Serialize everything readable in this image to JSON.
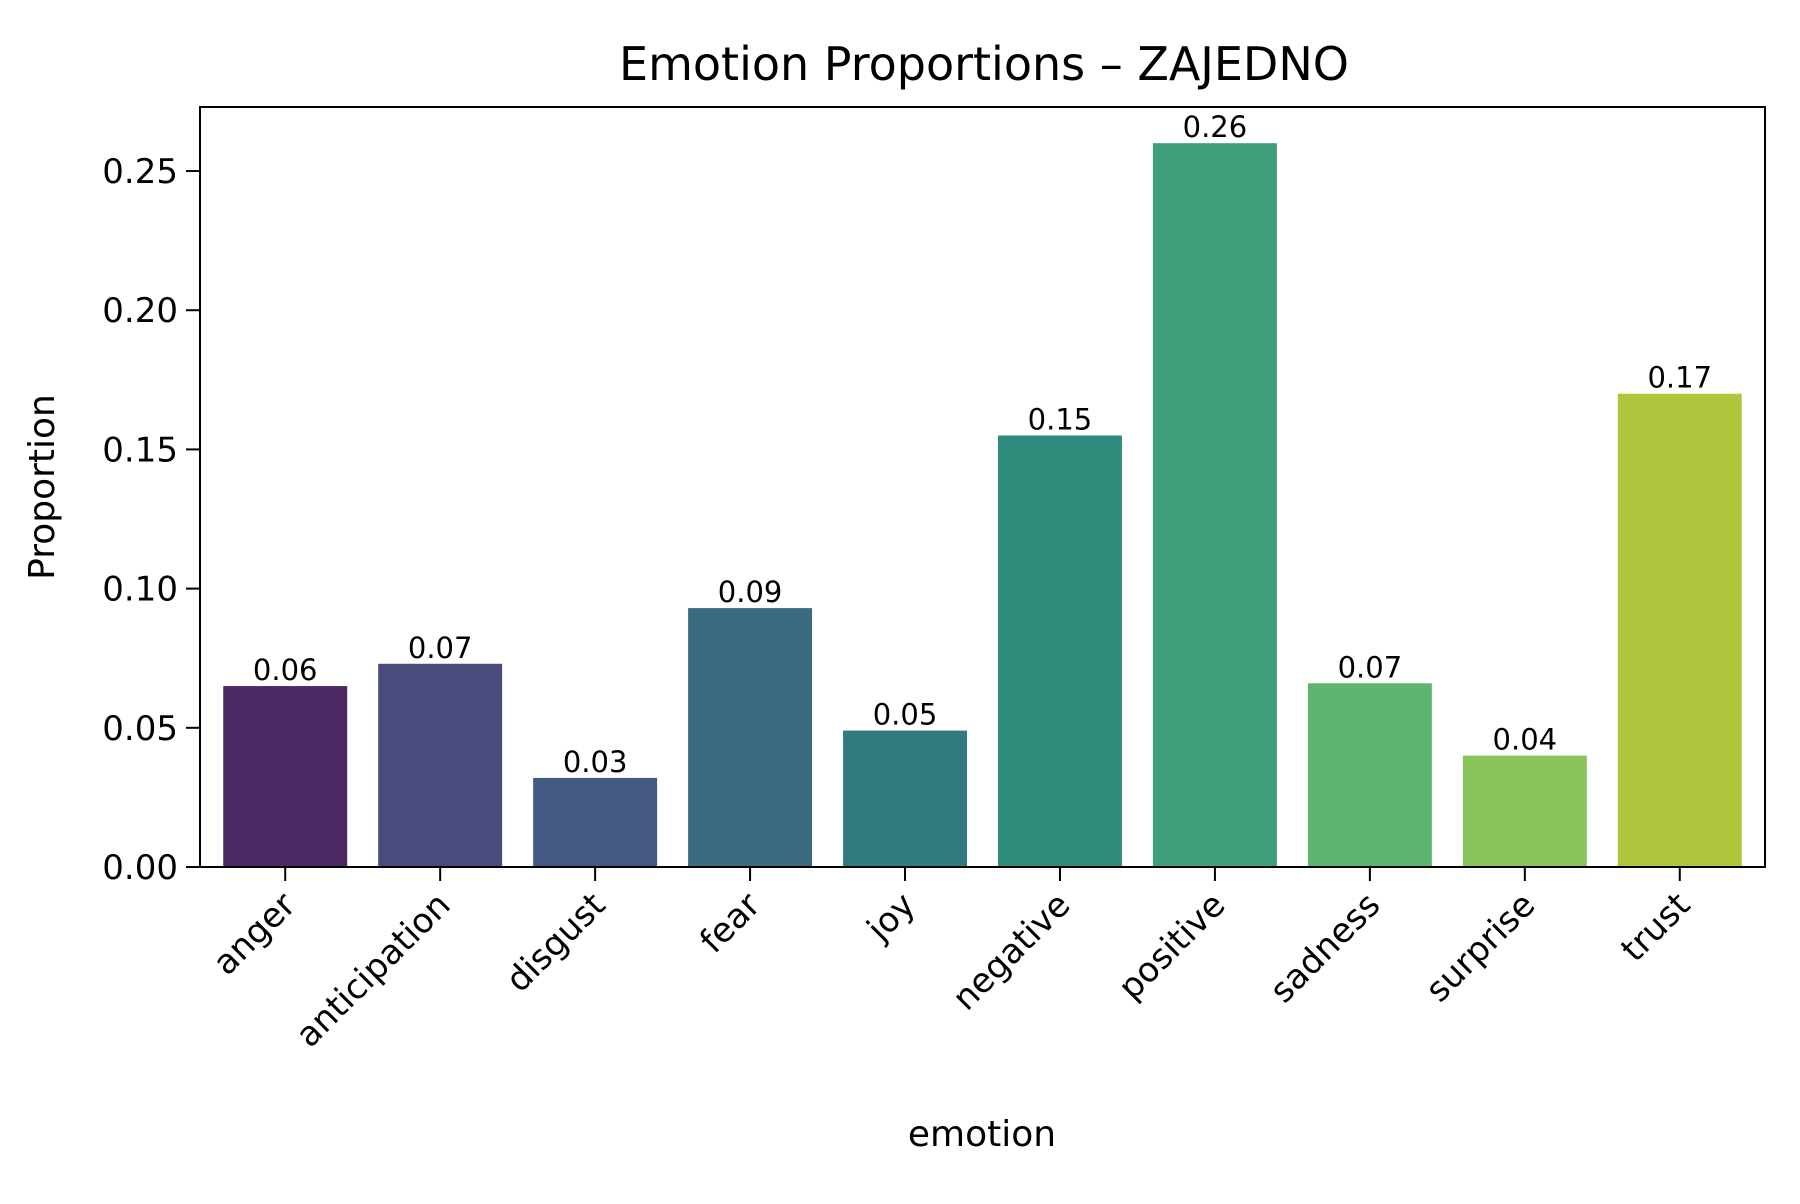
{
  "chart_data": {
    "type": "bar",
    "title": "Emotion Proportions – ZAJEDNO",
    "xlabel": "emotion",
    "ylabel": "Proportion",
    "categories": [
      "anger",
      "anticipation",
      "disgust",
      "fear",
      "joy",
      "negative",
      "positive",
      "sadness",
      "surprise",
      "trust"
    ],
    "values": [
      0.065,
      0.073,
      0.032,
      0.093,
      0.049,
      0.155,
      0.26,
      0.066,
      0.04,
      0.17
    ],
    "value_labels": [
      "0.06",
      "0.07",
      "0.03",
      "0.09",
      "0.05",
      "0.15",
      "0.26",
      "0.07",
      "0.04",
      "0.17"
    ],
    "colors": [
      "#4b2a63",
      "#4b4a7c",
      "#435a80",
      "#3b6b81",
      "#317a80",
      "#2f8b7c",
      "#3e9f78",
      "#5fb46f",
      "#88c35c",
      "#b0c73d"
    ],
    "yticks": [
      0.0,
      0.05,
      0.1,
      0.15,
      0.2,
      0.25
    ],
    "ytick_labels": [
      "0.00",
      "0.05",
      "0.10",
      "0.15",
      "0.20",
      "0.25"
    ],
    "ylim": [
      0,
      0.273
    ],
    "grid": false,
    "legend": false
  }
}
